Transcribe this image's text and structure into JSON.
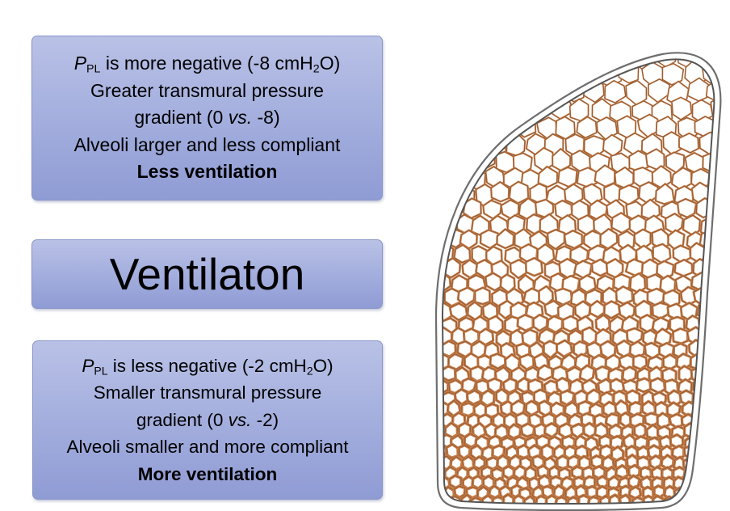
{
  "top_box": {
    "line1": {
      "symbol": "P",
      "symbol_sub": "PL",
      "text_before_sub": " is more negative (-8 cmH",
      "sub": "2",
      "text_after_sub": "O)"
    },
    "line2": "Greater transmural pressure",
    "line3": {
      "before": "gradient (0 ",
      "italic": "vs.",
      "after": " -8)"
    },
    "line4": "Alveoli larger and less compliant",
    "line5": "Less ventilation"
  },
  "middle_box": {
    "title": "Ventilaton"
  },
  "bottom_box": {
    "line1": {
      "symbol": "P",
      "symbol_sub": "PL",
      "text_before_sub": " is less negative (-2 cmH",
      "sub": "2",
      "text_after_sub": "O)"
    },
    "line2": "Smaller transmural pressure",
    "line3": {
      "before": "gradient (0 ",
      "italic": "vs.",
      "after": " -2)"
    },
    "line4": "Alveoli smaller and more compliant",
    "line5": "More ventilation"
  },
  "colors": {
    "box_fill": "#a2addd",
    "alveolar_wall": "#c47a45",
    "lung_outline": "#555555"
  }
}
